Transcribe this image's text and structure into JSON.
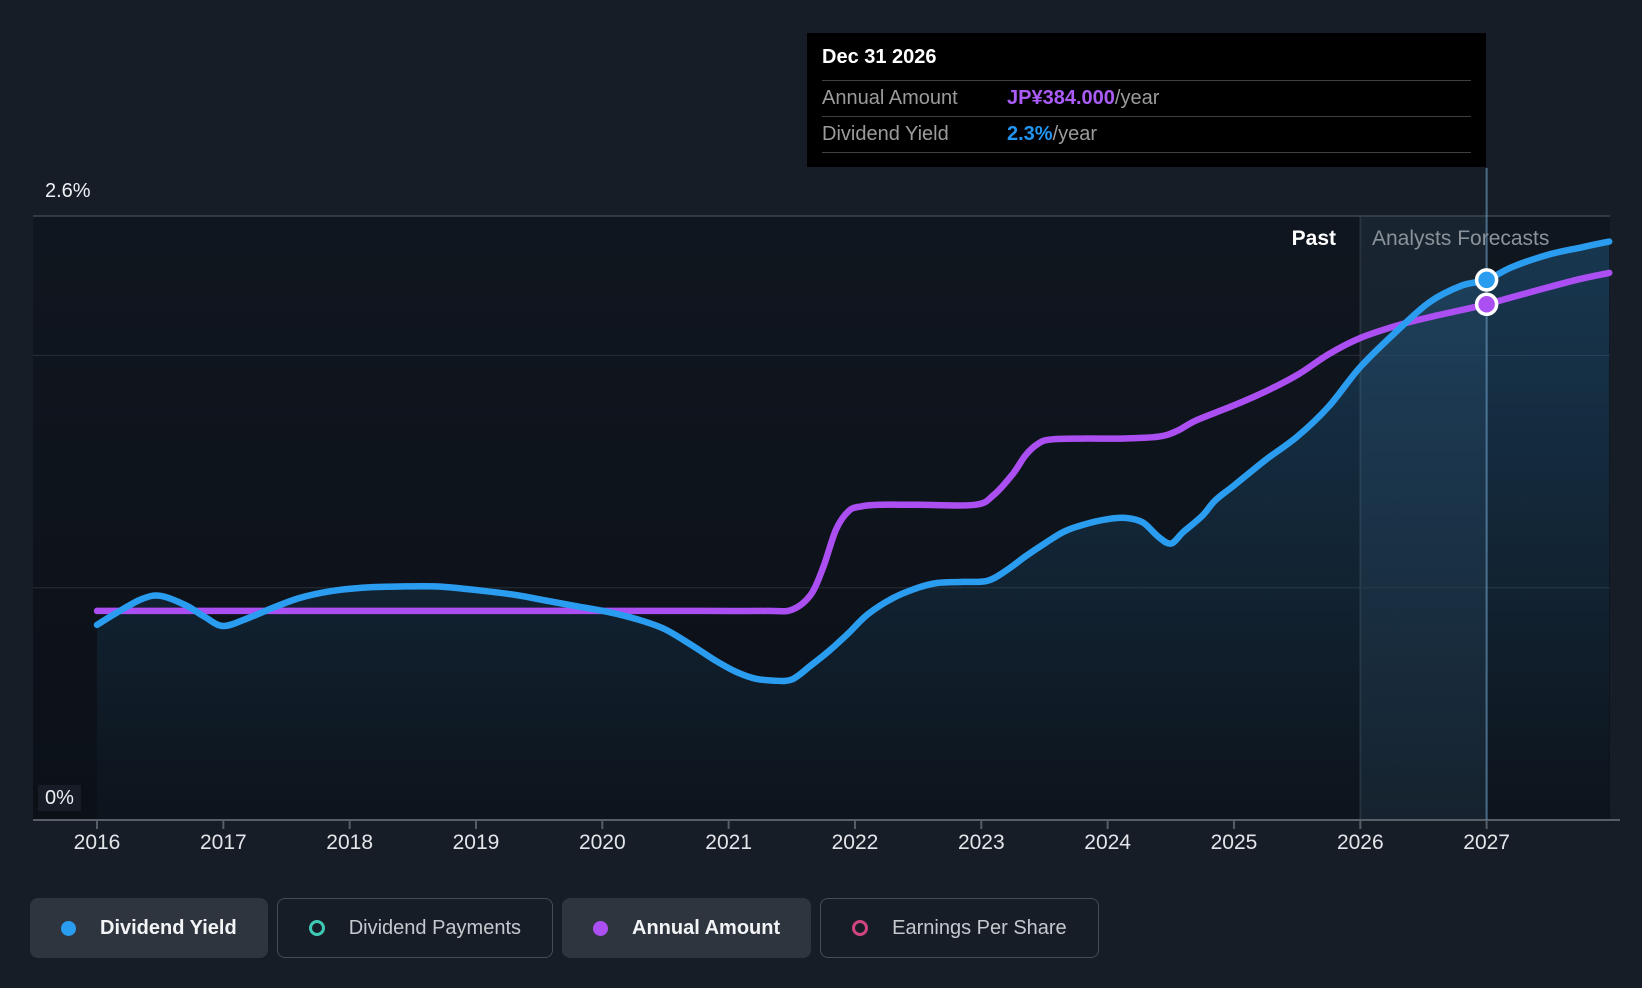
{
  "tooltip": {
    "date": "Dec 31 2026",
    "rows": [
      {
        "label": "Annual Amount",
        "value": "JP¥384.000",
        "suffix": "/year",
        "value_color": "#ab5cf7"
      },
      {
        "label": "Dividend Yield",
        "value": "2.3%",
        "suffix": "/year",
        "value_color": "#2196f3"
      }
    ]
  },
  "legend": {
    "items": [
      {
        "id": "dividend-yield",
        "label": "Dividend Yield",
        "swatch": "dot",
        "color": "#2b9df0",
        "active": true
      },
      {
        "id": "dividend-payments",
        "label": "Dividend Payments",
        "swatch": "ring",
        "color": "#3fc9b5",
        "active": false
      },
      {
        "id": "annual-amount",
        "label": "Annual Amount",
        "swatch": "dot",
        "color": "#ac4ff2",
        "active": true
      },
      {
        "id": "earnings-per-share",
        "label": "Earnings Per Share",
        "swatch": "ring",
        "color": "#cf4580",
        "active": false
      }
    ]
  },
  "chart_data": {
    "type": "line",
    "x_axis": {
      "ticks": [
        2016,
        2017,
        2018,
        2019,
        2020,
        2021,
        2022,
        2023,
        2024,
        2025,
        2026,
        2027
      ]
    },
    "y_axis": {
      "max_label": "2.6%",
      "min_label": "0%",
      "unit": "%",
      "range": [
        0,
        2.6
      ],
      "gridlines_pct": [
        1.0,
        2.0,
        2.6
      ]
    },
    "annotations": {
      "past_label": "Past",
      "forecast_label": "Analysts Forecasts"
    },
    "highlight_band": {
      "from_year": 2026.0,
      "to_year": 2027.0
    },
    "cursor": {
      "year": 2027.0,
      "date_label": "Dec 31 2026"
    },
    "series": [
      {
        "name": "Dividend Yield",
        "color": "#2b9df0",
        "fill": true,
        "unit": "percent",
        "points": [
          [
            2016.0,
            0.84
          ],
          [
            2016.15,
            0.89
          ],
          [
            2016.35,
            0.95
          ],
          [
            2016.5,
            0.965
          ],
          [
            2016.7,
            0.925
          ],
          [
            2016.85,
            0.875
          ],
          [
            2017.0,
            0.835
          ],
          [
            2017.2,
            0.87
          ],
          [
            2017.4,
            0.915
          ],
          [
            2017.6,
            0.955
          ],
          [
            2017.85,
            0.985
          ],
          [
            2018.1,
            1.0
          ],
          [
            2018.4,
            1.005
          ],
          [
            2018.7,
            1.005
          ],
          [
            2019.0,
            0.99
          ],
          [
            2019.3,
            0.97
          ],
          [
            2019.55,
            0.945
          ],
          [
            2019.8,
            0.92
          ],
          [
            2020.05,
            0.895
          ],
          [
            2020.3,
            0.86
          ],
          [
            2020.5,
            0.82
          ],
          [
            2020.7,
            0.755
          ],
          [
            2020.9,
            0.685
          ],
          [
            2021.05,
            0.64
          ],
          [
            2021.2,
            0.61
          ],
          [
            2021.35,
            0.6
          ],
          [
            2021.5,
            0.605
          ],
          [
            2021.65,
            0.665
          ],
          [
            2021.8,
            0.73
          ],
          [
            2021.95,
            0.805
          ],
          [
            2022.1,
            0.885
          ],
          [
            2022.3,
            0.955
          ],
          [
            2022.5,
            1.0
          ],
          [
            2022.65,
            1.02
          ],
          [
            2022.85,
            1.025
          ],
          [
            2023.05,
            1.03
          ],
          [
            2023.2,
            1.075
          ],
          [
            2023.35,
            1.135
          ],
          [
            2023.5,
            1.19
          ],
          [
            2023.65,
            1.24
          ],
          [
            2023.8,
            1.27
          ],
          [
            2024.0,
            1.295
          ],
          [
            2024.15,
            1.3
          ],
          [
            2024.28,
            1.28
          ],
          [
            2024.4,
            1.22
          ],
          [
            2024.5,
            1.19
          ],
          [
            2024.6,
            1.24
          ],
          [
            2024.75,
            1.31
          ],
          [
            2024.85,
            1.375
          ],
          [
            2025.0,
            1.44
          ],
          [
            2025.25,
            1.55
          ],
          [
            2025.5,
            1.65
          ],
          [
            2025.75,
            1.78
          ],
          [
            2026.0,
            1.95
          ],
          [
            2026.3,
            2.11
          ],
          [
            2026.55,
            2.23
          ],
          [
            2026.8,
            2.3
          ],
          [
            2027.0,
            2.325
          ],
          [
            2027.2,
            2.38
          ],
          [
            2027.5,
            2.435
          ],
          [
            2027.75,
            2.465
          ],
          [
            2027.97,
            2.49
          ]
        ]
      },
      {
        "name": "Annual Amount",
        "color": "#ac4ff2",
        "fill": false,
        "unit": "yield-axis equivalent (secondary JP¥ axis not shown)",
        "value_at_cursor": "JP¥384.000/year",
        "points": [
          [
            2016.0,
            0.9
          ],
          [
            2017.0,
            0.9
          ],
          [
            2018.0,
            0.9
          ],
          [
            2019.0,
            0.9
          ],
          [
            2020.0,
            0.9
          ],
          [
            2020.8,
            0.9
          ],
          [
            2021.3,
            0.9
          ],
          [
            2021.5,
            0.905
          ],
          [
            2021.65,
            0.97
          ],
          [
            2021.75,
            1.09
          ],
          [
            2021.85,
            1.25
          ],
          [
            2021.95,
            1.33
          ],
          [
            2022.05,
            1.35
          ],
          [
            2022.2,
            1.357
          ],
          [
            2022.5,
            1.357
          ],
          [
            2022.95,
            1.357
          ],
          [
            2023.1,
            1.4
          ],
          [
            2023.25,
            1.49
          ],
          [
            2023.35,
            1.57
          ],
          [
            2023.45,
            1.62
          ],
          [
            2023.55,
            1.638
          ],
          [
            2023.8,
            1.642
          ],
          [
            2024.1,
            1.642
          ],
          [
            2024.4,
            1.65
          ],
          [
            2024.55,
            1.675
          ],
          [
            2024.7,
            1.72
          ],
          [
            2025.0,
            1.785
          ],
          [
            2025.25,
            1.845
          ],
          [
            2025.5,
            1.915
          ],
          [
            2025.75,
            2.005
          ],
          [
            2026.0,
            2.075
          ],
          [
            2026.3,
            2.13
          ],
          [
            2026.55,
            2.165
          ],
          [
            2026.8,
            2.195
          ],
          [
            2027.0,
            2.22
          ],
          [
            2027.2,
            2.25
          ],
          [
            2027.5,
            2.295
          ],
          [
            2027.75,
            2.33
          ],
          [
            2027.97,
            2.355
          ]
        ]
      }
    ],
    "markers": [
      {
        "series": "Dividend Yield",
        "year": 2027.0,
        "value": 2.325,
        "label": "2.3%/year"
      },
      {
        "series": "Annual Amount",
        "year": 2027.0,
        "value": 2.22,
        "label": "JP¥384.000/year"
      }
    ]
  }
}
